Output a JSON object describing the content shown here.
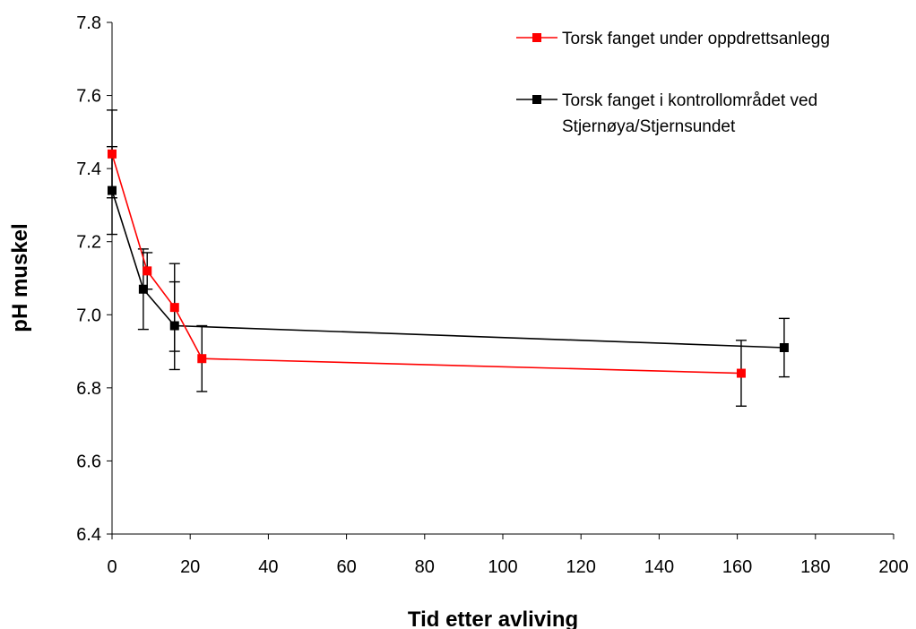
{
  "chart_data": {
    "type": "scatter",
    "title": "",
    "xlabel": "Tid etter avliving",
    "ylabel": "pH muskel",
    "xlim": [
      0,
      200
    ],
    "ylim": [
      6.4,
      7.8
    ],
    "xticks": [
      0,
      20,
      40,
      60,
      80,
      100,
      120,
      140,
      160,
      180,
      200
    ],
    "yticks": [
      6.4,
      6.6,
      6.8,
      7.0,
      7.2,
      7.4,
      7.6,
      7.8
    ],
    "xtick_labels": [
      "0",
      "20",
      "40",
      "60",
      "80",
      "100",
      "120",
      "140",
      "160",
      "180",
      "200"
    ],
    "ytick_labels": [
      "6.4",
      "6.6",
      "6.8",
      "7.0",
      "7.2",
      "7.4",
      "7.6",
      "7.8"
    ],
    "grid": false,
    "legend_position": "top-right",
    "series": [
      {
        "name": "Torsk fanget under oppdrettsanlegg",
        "color": "#ff0000",
        "marker": "square",
        "x": [
          0,
          9,
          16,
          23,
          161
        ],
        "y": [
          7.44,
          7.12,
          7.02,
          6.88,
          6.84
        ],
        "err": [
          0.12,
          0.05,
          0.12,
          0.09,
          0.09
        ]
      },
      {
        "name": "Torsk fanget i kontrollområdet ved Stjernøya/Stjernsundet",
        "legend_lines": [
          "Torsk fanget i kontrollområdet ved",
          "Stjernøya/Stjernsundet"
        ],
        "color": "#000000",
        "marker": "square",
        "x": [
          0,
          8,
          16,
          172
        ],
        "y": [
          7.34,
          7.07,
          6.97,
          6.91
        ],
        "err": [
          0.12,
          0.11,
          0.12,
          0.08
        ]
      }
    ]
  }
}
